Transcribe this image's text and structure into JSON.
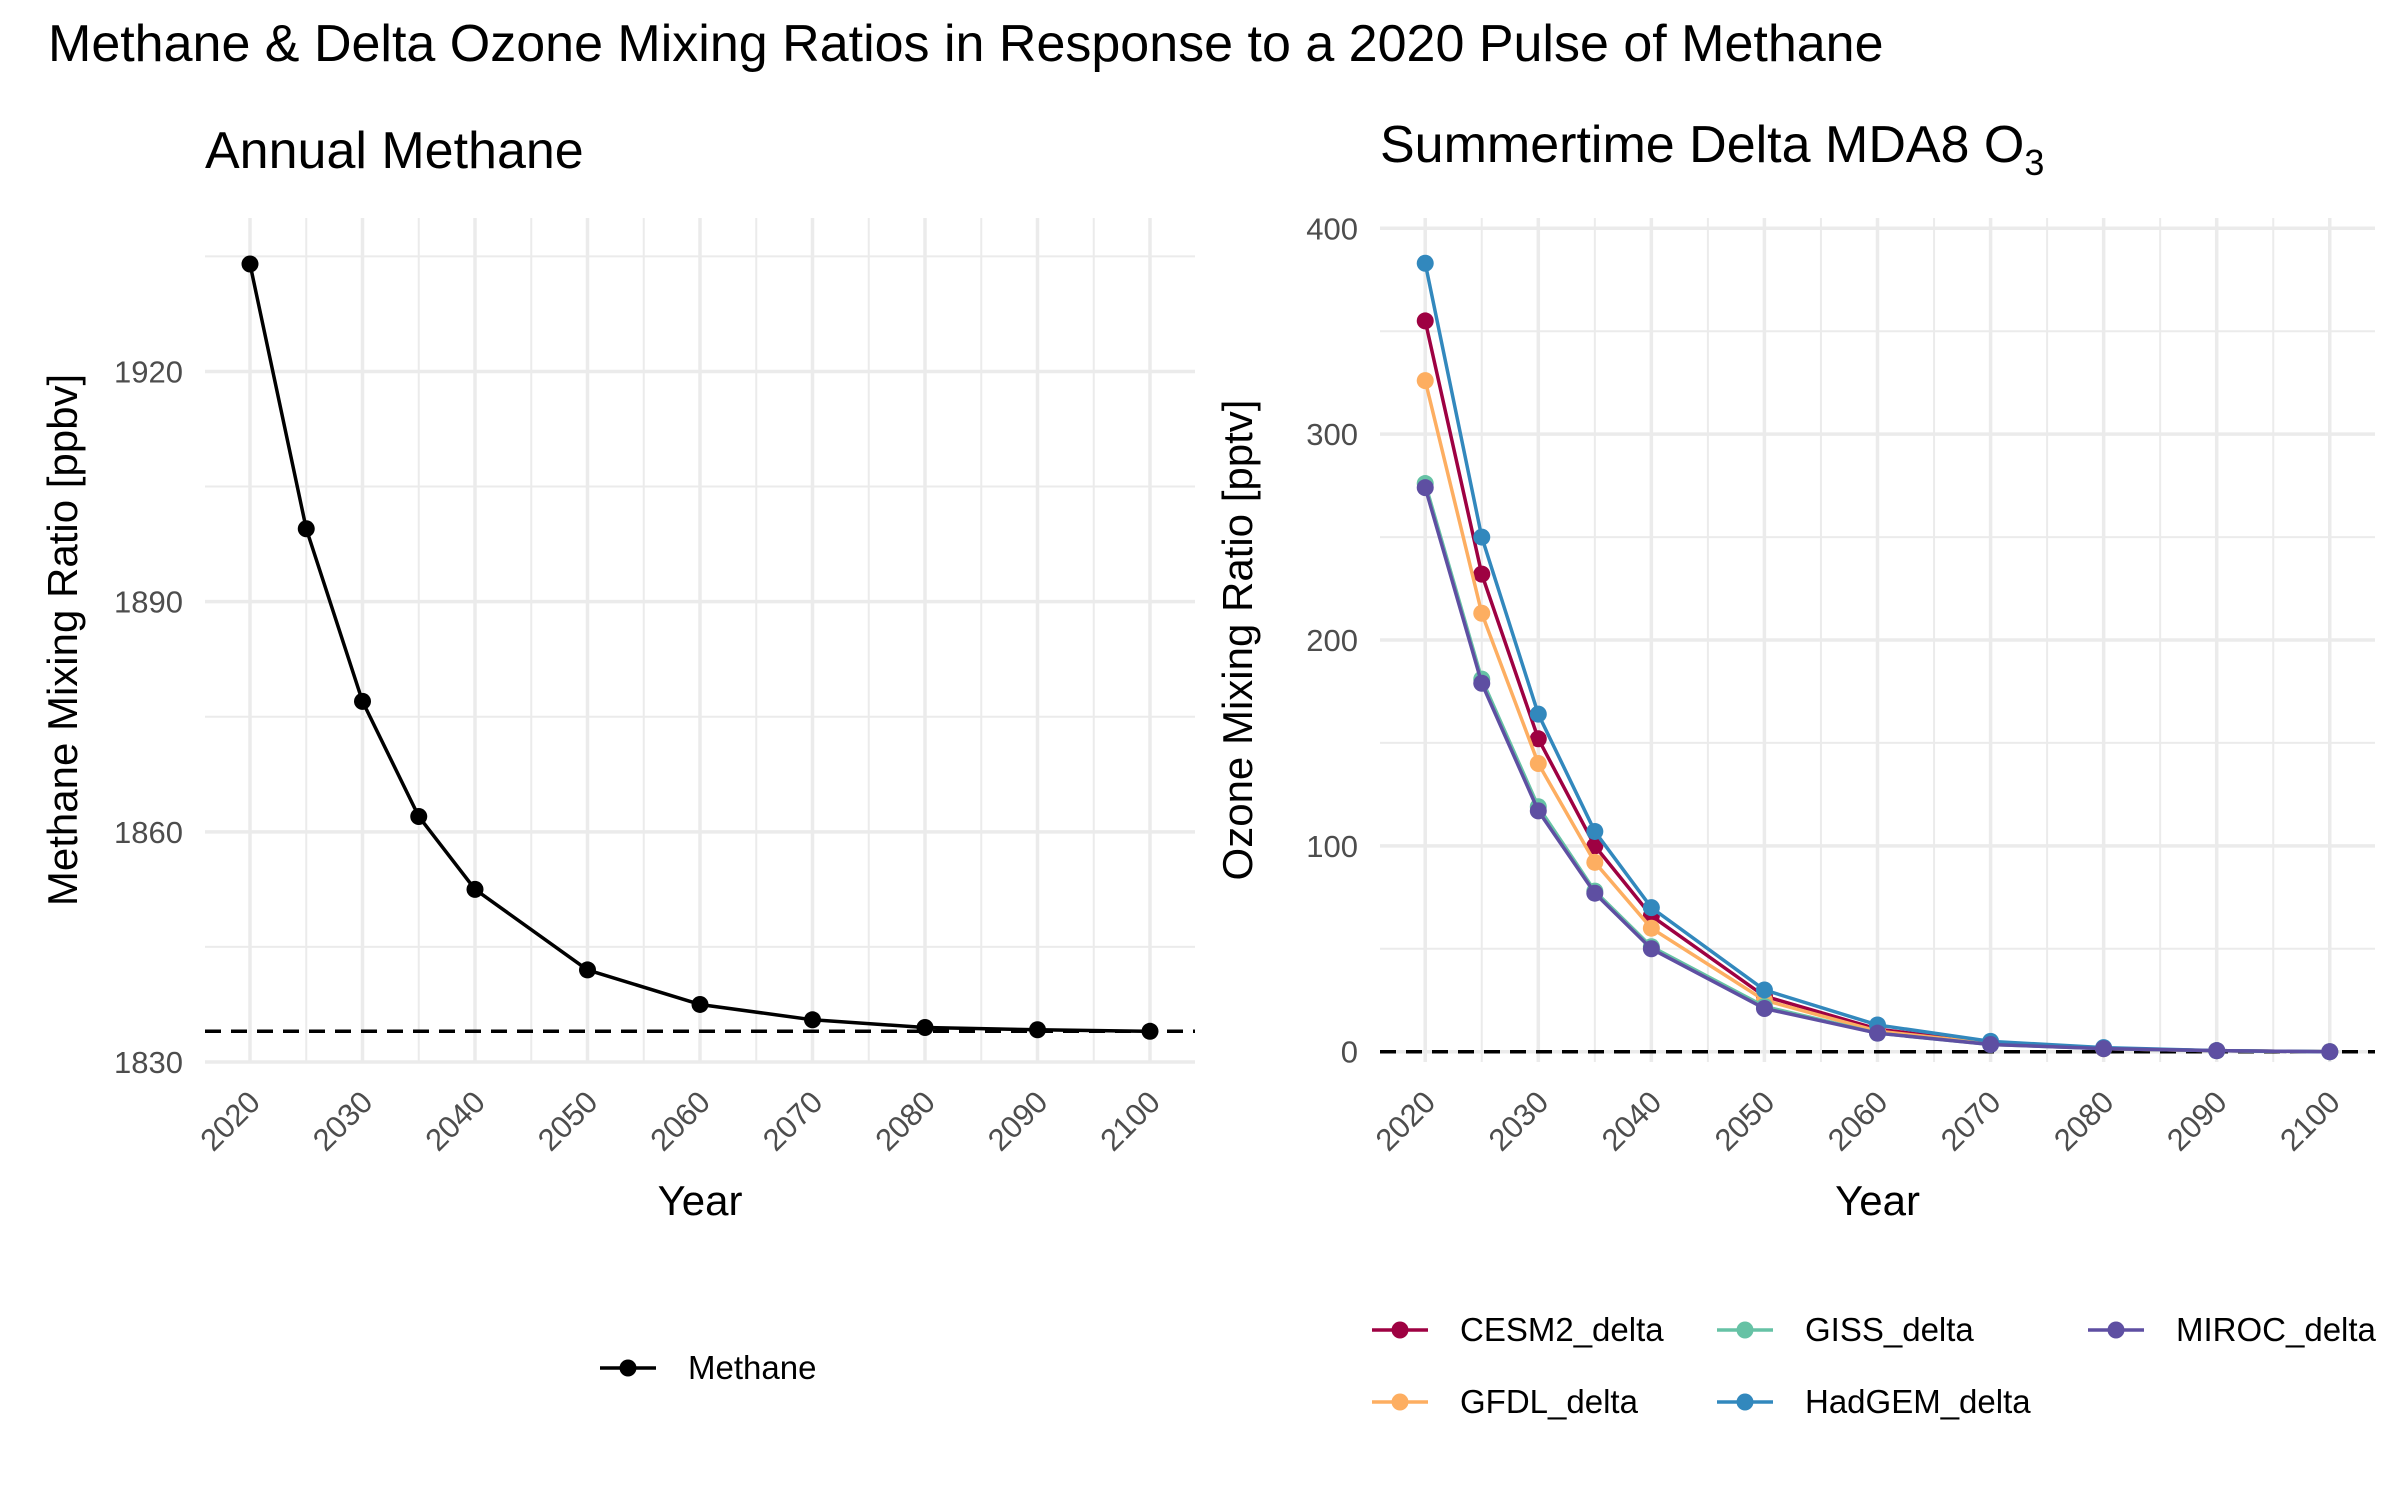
{
  "title": "Methane & Delta Ozone Mixing Ratios in Response to a 2020 Pulse of Methane",
  "chart_data": [
    {
      "type": "line",
      "title": "Annual Methane",
      "xlabel": "Year",
      "ylabel": "Methane Mixing Ratio [ppbv]",
      "xlim": [
        2016,
        2104
      ],
      "ylim": [
        1830,
        1940
      ],
      "x_ticks": [
        2020,
        2030,
        2040,
        2050,
        2060,
        2070,
        2080,
        2090,
        2100
      ],
      "y_ticks": [
        1830,
        1860,
        1890,
        1920
      ],
      "x": [
        2020,
        2025,
        2030,
        2035,
        2040,
        2050,
        2060,
        2070,
        2080,
        2090,
        2100
      ],
      "series": [
        {
          "name": "Methane",
          "color": "#000000",
          "values": [
            1934,
            1899.5,
            1877,
            1862,
            1852.5,
            1842,
            1837.5,
            1835.5,
            1834.5,
            1834.2,
            1834
          ]
        }
      ],
      "reference_line": 1834,
      "grid": true,
      "legend_position": "bottom"
    },
    {
      "type": "line",
      "title": "Summertime Delta MDA8 O",
      "title_subscript": "3",
      "xlabel": "Year",
      "ylabel": "Ozone Mixing Ratio [pptv]",
      "xlim": [
        2016,
        2104
      ],
      "ylim": [
        -5,
        405
      ],
      "x_ticks": [
        2020,
        2030,
        2040,
        2050,
        2060,
        2070,
        2080,
        2090,
        2100
      ],
      "y_ticks": [
        0,
        100,
        200,
        300,
        400
      ],
      "x": [
        2020,
        2025,
        2030,
        2035,
        2040,
        2050,
        2060,
        2070,
        2080,
        2090,
        2100
      ],
      "series": [
        {
          "name": "CESM2_delta",
          "color": "#9e0142",
          "values": [
            355,
            232,
            152,
            100,
            66,
            27,
            11,
            4,
            1.5,
            0.5,
            0
          ]
        },
        {
          "name": "GFDL_delta",
          "color": "#fdae61",
          "values": [
            326,
            213,
            140,
            92,
            60,
            25,
            10,
            4,
            1.5,
            0.5,
            0
          ]
        },
        {
          "name": "GISS_delta",
          "color": "#66c2a5",
          "values": [
            276,
            181,
            119,
            78,
            51,
            22,
            9,
            3.5,
            1.5,
            0.5,
            0
          ]
        },
        {
          "name": "HadGEM_delta",
          "color": "#3288bd",
          "values": [
            383,
            250,
            164,
            107,
            70,
            30,
            13,
            5,
            2,
            0.5,
            0
          ]
        },
        {
          "name": "MIROC_delta",
          "color": "#5e4fa2",
          "values": [
            274,
            179,
            117,
            77,
            50,
            21,
            9,
            3.5,
            1.5,
            0.5,
            0
          ]
        }
      ],
      "reference_line": 0,
      "grid": true,
      "legend_position": "bottom"
    }
  ]
}
